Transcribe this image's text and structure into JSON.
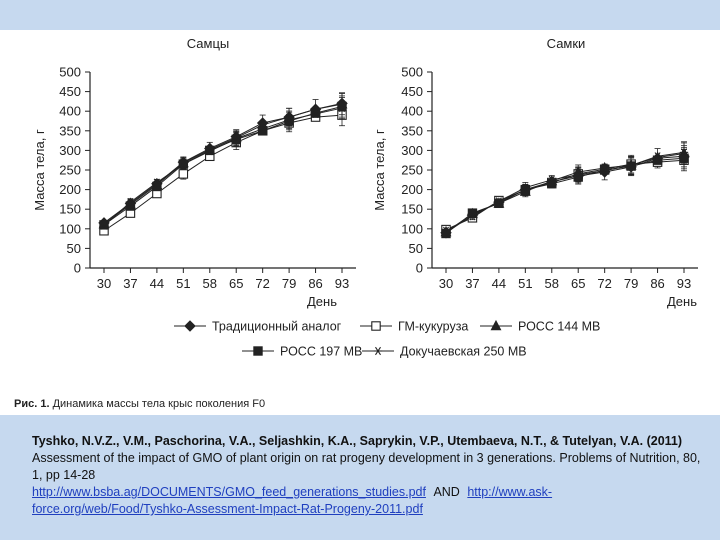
{
  "colors": {
    "slide_background": "#c6d9ef",
    "panel_background": "#ffffff",
    "link": "#1f3fbf",
    "series": "#222222"
  },
  "figure": {
    "caption_label": "Рис. 1.",
    "caption_text": "Динамика массы тела крыс поколения F0"
  },
  "legend": {
    "placement": "bottom-center",
    "items": [
      {
        "label": "Традиционный аналог",
        "marker": "filled-diamond"
      },
      {
        "label": "ГМ-кукуруза",
        "marker": "open-square"
      },
      {
        "label": "РОСС 144 МВ",
        "marker": "filled-triangle"
      },
      {
        "label": "РОСС 197 МВ",
        "marker": "filled-square"
      },
      {
        "label": "Докучаевская 250 МВ",
        "marker": "asterisk"
      }
    ]
  },
  "chart_data": [
    {
      "type": "line",
      "title": "Самцы",
      "xlabel": "День",
      "ylabel": "Масса тела, г",
      "ylim": [
        0,
        500
      ],
      "yticks": [
        0,
        50,
        100,
        150,
        200,
        250,
        300,
        350,
        400,
        450,
        500
      ],
      "categories": [
        "30",
        "37",
        "44",
        "51",
        "58",
        "65",
        "72",
        "79",
        "86",
        "93"
      ],
      "grid": false,
      "error_bars": true,
      "series": [
        {
          "name": "Традиционный аналог",
          "values": [
            115,
            165,
            215,
            270,
            305,
            335,
            370,
            385,
            405,
            420
          ]
        },
        {
          "name": "ГМ-кукуруза",
          "values": [
            95,
            140,
            190,
            240,
            285,
            320,
            350,
            370,
            385,
            390
          ]
        },
        {
          "name": "РОСС 144 МВ",
          "values": [
            112,
            162,
            212,
            268,
            302,
            332,
            365,
            385,
            405,
            418
          ]
        },
        {
          "name": "РОСС 197 МВ",
          "values": [
            110,
            158,
            208,
            265,
            300,
            328,
            350,
            375,
            395,
            412
          ]
        },
        {
          "name": "Докучаевская 250 МВ",
          "values": [
            108,
            168,
            218,
            265,
            298,
            330,
            355,
            378,
            393,
            408
          ]
        }
      ]
    },
    {
      "type": "line",
      "title": "Самки",
      "xlabel": "День",
      "ylabel": "Масса тела, г",
      "ylim": [
        0,
        500
      ],
      "yticks": [
        0,
        50,
        100,
        150,
        200,
        250,
        300,
        350,
        400,
        450,
        500
      ],
      "categories": [
        "30",
        "37",
        "44",
        "51",
        "58",
        "65",
        "72",
        "79",
        "86",
        "93"
      ],
      "grid": false,
      "error_bars": true,
      "series": [
        {
          "name": "Традиционный аналог",
          "values": [
            90,
            135,
            168,
            200,
            220,
            235,
            245,
            258,
            280,
            285
          ]
        },
        {
          "name": "ГМ-кукуруза",
          "values": [
            98,
            128,
            172,
            198,
            218,
            240,
            252,
            265,
            270,
            275
          ]
        },
        {
          "name": "РОСС 144 МВ",
          "values": [
            92,
            138,
            165,
            195,
            222,
            245,
            255,
            262,
            282,
            292
          ]
        },
        {
          "name": "РОСС 197 МВ",
          "values": [
            88,
            140,
            165,
            200,
            215,
            232,
            250,
            260,
            275,
            280
          ]
        },
        {
          "name": "Докучаевская 250 МВ",
          "values": [
            95,
            132,
            170,
            205,
            225,
            238,
            248,
            262,
            285,
            295
          ]
        }
      ]
    }
  ],
  "citation": {
    "authors": "Tyshko, N.V.Z., V.M., Paschorina, V.A., Seljashkin, K.A., Saprykin, V.P., Utembaeva, N.T., & Tutelyan, V.A. (2011)",
    "text": "Assessment of the impact of GMO of plant origin on rat progeny development in 3 generations. Problems of Nutrition, 80, 1, pp  14-28",
    "link1": "http://www.bsba.ag/DOCUMENTS/GMO_feed_generations_studies.pdf",
    "and_text": "AND",
    "link2": "http://www.ask-force.org/web/Food/Tyshko-Assessment-Impact-Rat-Progeny-2011.pdf"
  }
}
